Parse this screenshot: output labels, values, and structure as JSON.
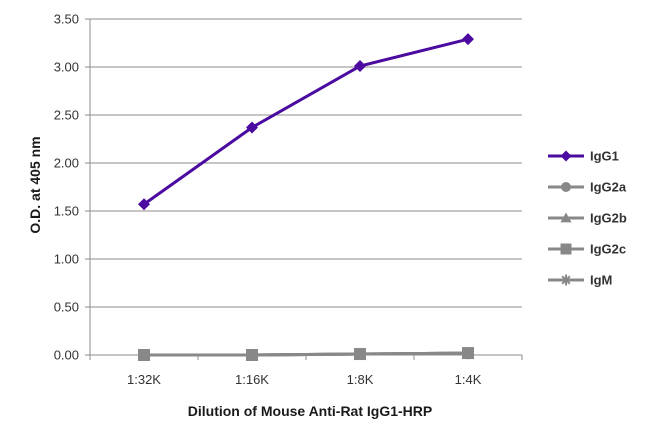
{
  "chart_data": {
    "type": "line",
    "categories": [
      "1:32K",
      "1:16K",
      "1:8K",
      "1:4K"
    ],
    "series": [
      {
        "name": "IgG1",
        "values": [
          1.57,
          2.37,
          3.01,
          3.29
        ],
        "color": "#4b0aa0",
        "marker": "diamond"
      },
      {
        "name": "IgG2a",
        "values": [
          0.0,
          0.0,
          0.01,
          0.02
        ],
        "color": "#888888",
        "marker": "circle"
      },
      {
        "name": "IgG2b",
        "values": [
          0.0,
          0.0,
          0.01,
          0.02
        ],
        "color": "#888888",
        "marker": "triangle"
      },
      {
        "name": "IgG2c",
        "values": [
          0.0,
          0.0,
          0.01,
          0.02
        ],
        "color": "#888888",
        "marker": "square"
      },
      {
        "name": "IgM",
        "values": [
          0.0,
          0.0,
          0.01,
          0.02
        ],
        "color": "#888888",
        "marker": "asterisk"
      }
    ],
    "ylabel": "O.D. at 405 nm",
    "xlabel": "Dilution of Mouse Anti-Rat IgG1-HRP",
    "ylim": [
      0,
      3.5
    ],
    "yticks": [
      "0.00",
      "0.50",
      "1.00",
      "1.50",
      "2.00",
      "2.50",
      "3.00",
      "3.50"
    ],
    "grid": true,
    "legend_position": "right"
  }
}
